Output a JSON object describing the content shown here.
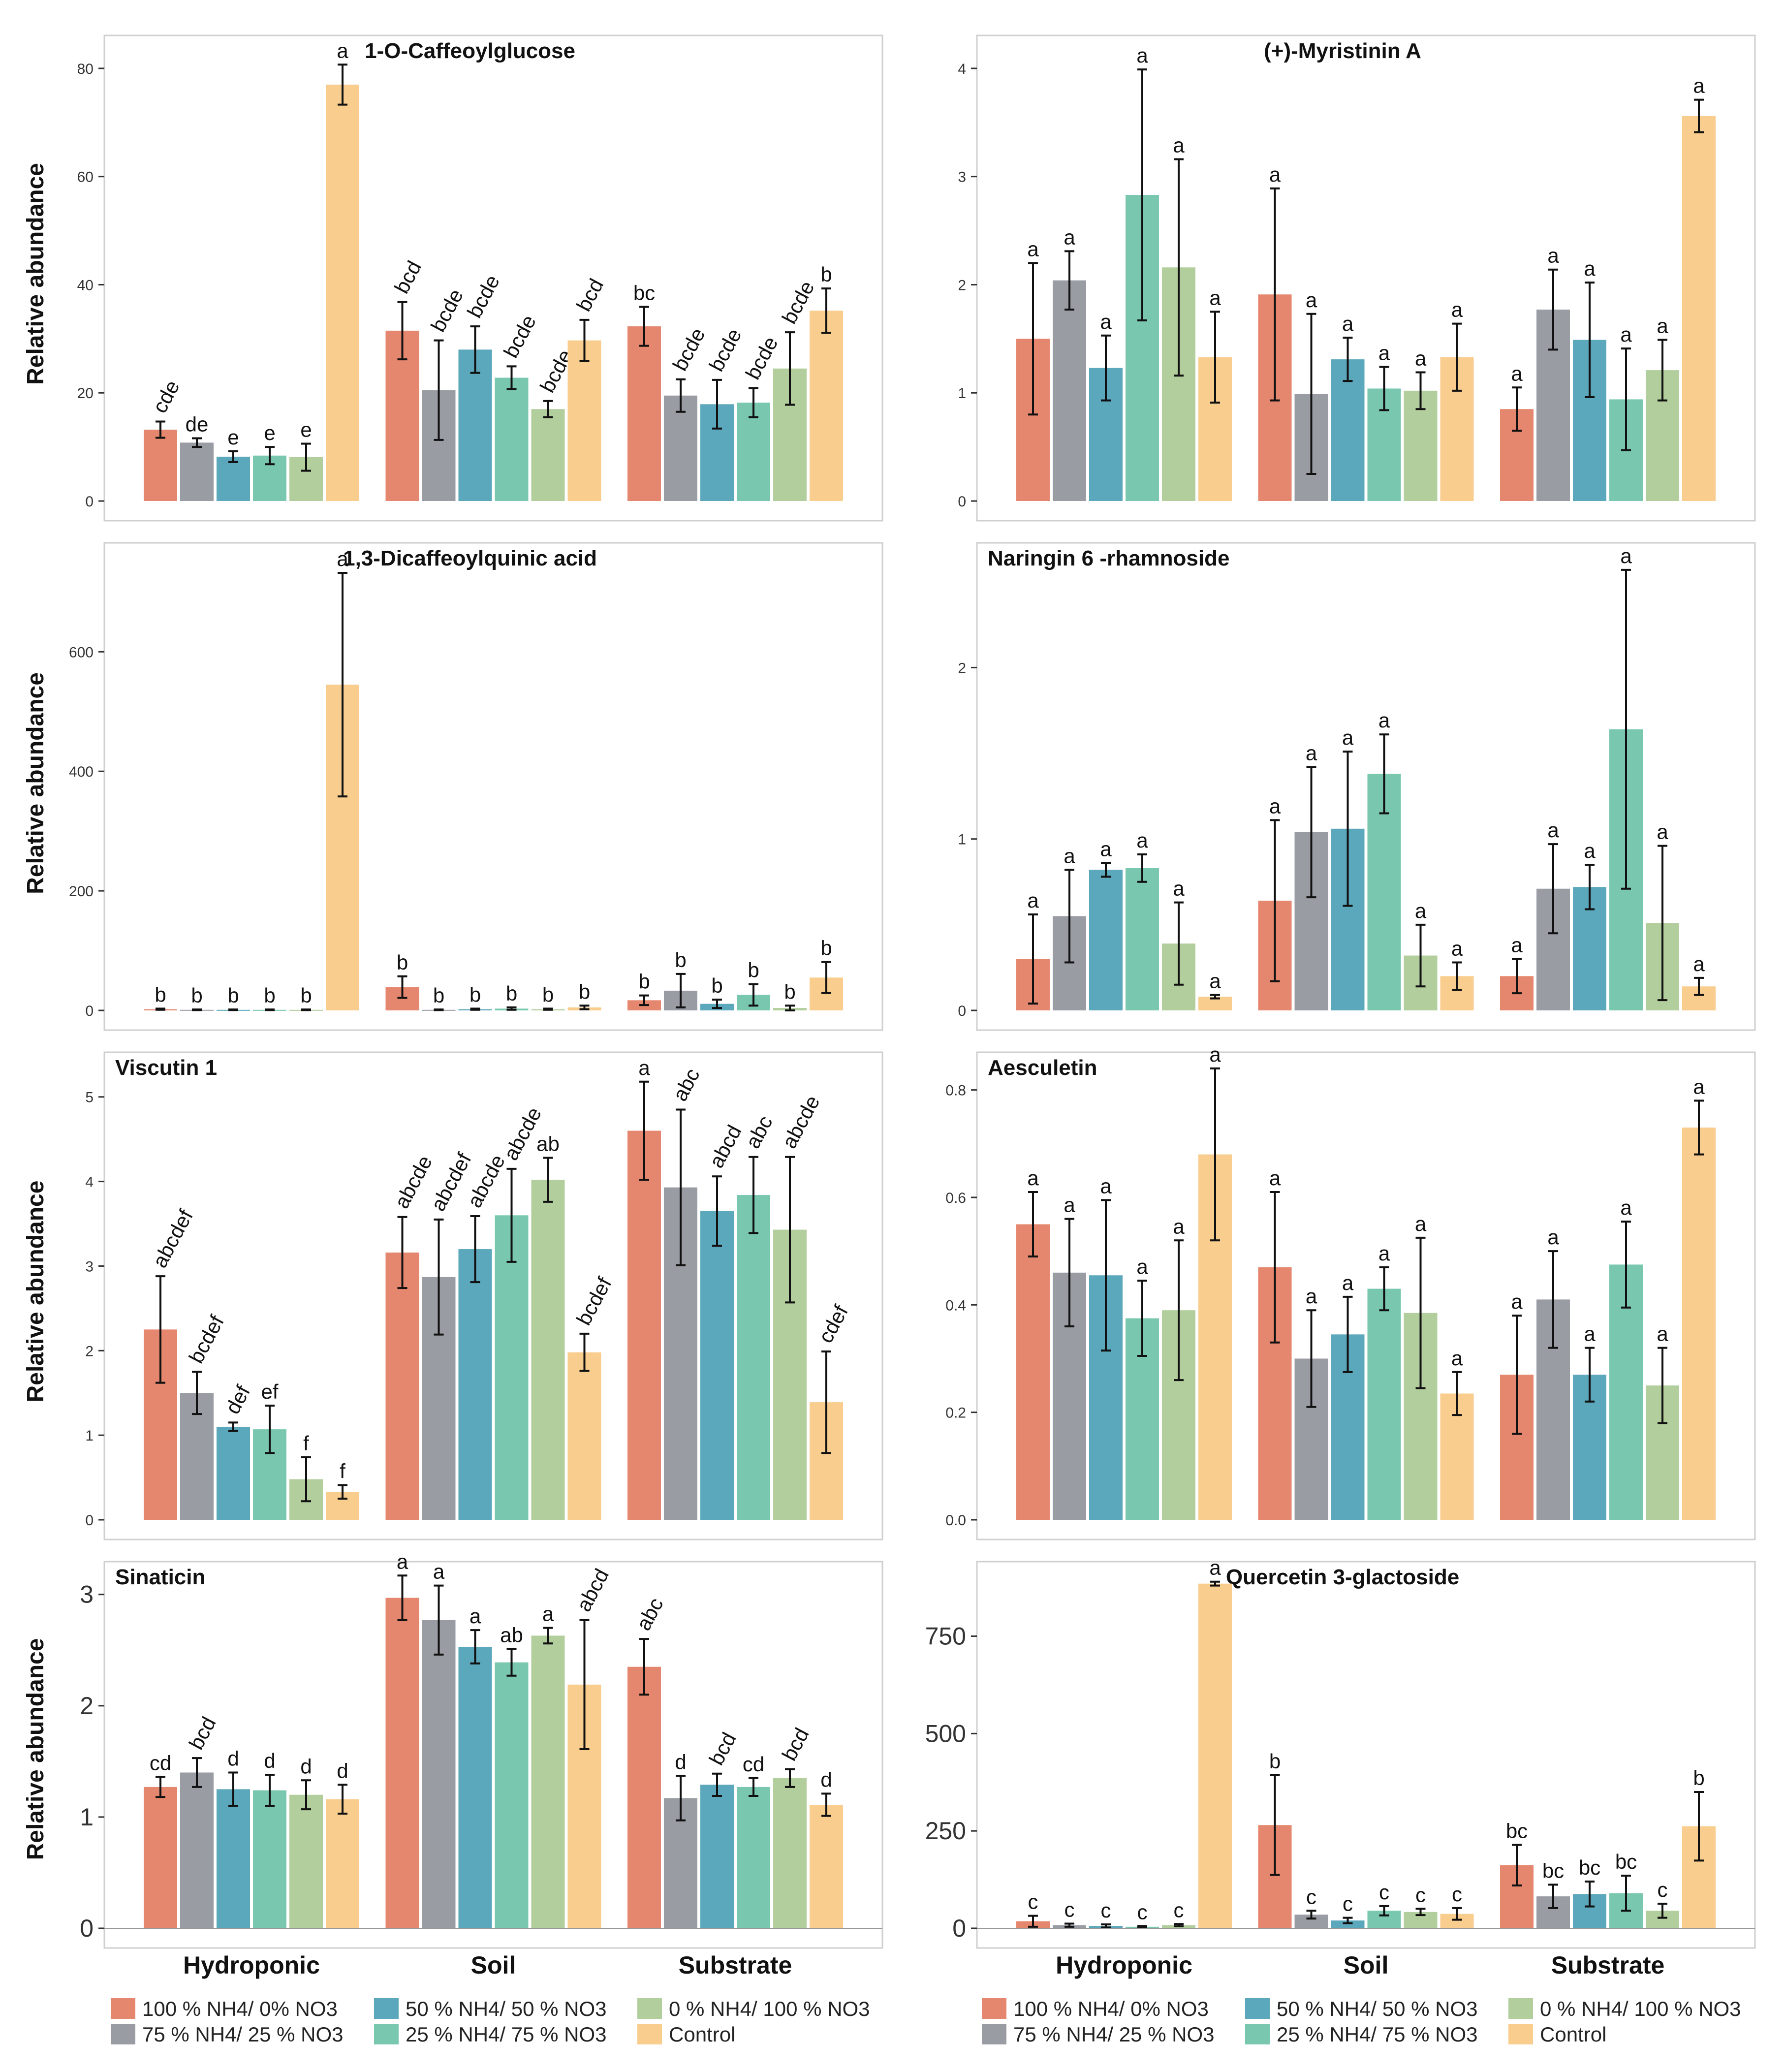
{
  "groups": [
    "Hydroponic",
    "Soil",
    "Substrate"
  ],
  "ylabel": "Relative abundance",
  "legend": [
    {
      "label": "100 % NH4/ 0% NO3",
      "color": "#E5876E"
    },
    {
      "label": "75 % NH4/ 25 % NO3",
      "color": "#9A9CA4"
    },
    {
      "label": "50 % NH4/ 50 % NO3",
      "color": "#5BA7BB"
    },
    {
      "label": "25 % NH4/ 75 % NO3",
      "color": "#78C7AE"
    },
    {
      "label": "0 % NH4/ 100 % NO3",
      "color": "#B2CE9D"
    },
    {
      "label": "Control",
      "color": "#F8CD8D"
    }
  ],
  "chart_data": [
    {
      "type": "bar",
      "title": "1-O-Caffeoylglucose",
      "title_align": "center",
      "xlabel": "",
      "ylabel": "Relative abundance",
      "ylim": [
        0,
        84
      ],
      "yticks": [
        0,
        20,
        40,
        60,
        80
      ],
      "categories": [
        "Hydroponic",
        "Soil",
        "Substrate"
      ],
      "series": [
        {
          "name": "100 % NH4/ 0% NO3",
          "values": [
            13.2,
            31.5,
            32.3
          ],
          "errors": [
            1.5,
            5.3,
            3.6
          ],
          "letters": [
            "cde",
            "bcd",
            "bc"
          ]
        },
        {
          "name": "75 % NH4/ 25 % NO3",
          "values": [
            10.8,
            20.5,
            19.5
          ],
          "errors": [
            0.8,
            9.2,
            3.0
          ],
          "letters": [
            "de",
            "bcde",
            "bcde"
          ]
        },
        {
          "name": "50 % NH4/ 50 % NO3",
          "values": [
            8.2,
            28.0,
            17.9
          ],
          "errors": [
            1.0,
            4.3,
            4.5
          ],
          "letters": [
            "e",
            "bcde",
            "bcde"
          ]
        },
        {
          "name": "25 % NH4/ 75 % NO3",
          "values": [
            8.4,
            22.8,
            18.2
          ],
          "errors": [
            1.6,
            2.1,
            2.7
          ],
          "letters": [
            "e",
            "bcde",
            "bcde"
          ]
        },
        {
          "name": "0 % NH4/ 100 % NO3",
          "values": [
            8.1,
            17.0,
            24.5
          ],
          "errors": [
            2.5,
            1.5,
            6.7
          ],
          "letters": [
            "e",
            "bcde",
            "bcde"
          ]
        },
        {
          "name": "Control",
          "values": [
            77.0,
            29.7,
            35.2
          ],
          "errors": [
            3.7,
            3.8,
            4.1
          ],
          "letters": [
            "a",
            "bcd",
            "b"
          ]
        }
      ]
    },
    {
      "type": "bar",
      "title": "(+)-Myristinin A",
      "title_align": "center",
      "xlabel": "",
      "ylabel": "",
      "ylim": [
        0,
        4.2
      ],
      "yticks": [
        0,
        1,
        2,
        3,
        4
      ],
      "categories": [
        "Hydroponic",
        "Soil",
        "Substrate"
      ],
      "series": [
        {
          "name": "100 % NH4/ 0% NO3",
          "values": [
            1.5,
            1.91,
            0.85
          ],
          "errors": [
            0.7,
            0.98,
            0.2
          ],
          "letters": [
            "a",
            "a",
            "a"
          ]
        },
        {
          "name": "75 % NH4/ 25 % NO3",
          "values": [
            2.04,
            0.99,
            1.77
          ],
          "errors": [
            0.27,
            0.74,
            0.37
          ],
          "letters": [
            "a",
            "a",
            "a"
          ]
        },
        {
          "name": "50 % NH4/ 50 % NO3",
          "values": [
            1.23,
            1.31,
            1.49
          ],
          "errors": [
            0.3,
            0.2,
            0.53
          ],
          "letters": [
            "a",
            "a",
            "a"
          ]
        },
        {
          "name": "25 % NH4/ 75 % NO3",
          "values": [
            2.83,
            1.04,
            0.94
          ],
          "errors": [
            1.16,
            0.2,
            0.47
          ],
          "letters": [
            "a",
            "a",
            "a"
          ]
        },
        {
          "name": "0 % NH4/ 100 % NO3",
          "values": [
            2.16,
            1.02,
            1.21
          ],
          "errors": [
            1.0,
            0.17,
            0.28
          ],
          "letters": [
            "a",
            "a",
            "a"
          ]
        },
        {
          "name": "Control",
          "values": [
            1.33,
            1.33,
            3.56
          ],
          "errors": [
            0.42,
            0.31,
            0.15
          ],
          "letters": [
            "a",
            "a",
            "a"
          ]
        }
      ]
    },
    {
      "type": "bar",
      "title": "1,3-Dicaffeoylquinic acid",
      "title_align": "center",
      "xlabel": "",
      "ylabel": "Relative abundance",
      "ylim": [
        0,
        760
      ],
      "yticks": [
        0,
        200,
        400,
        600
      ],
      "categories": [
        "Hydroponic",
        "Soil",
        "Substrate"
      ],
      "series": [
        {
          "name": "100 % NH4/ 0% NO3",
          "values": [
            2,
            39,
            17
          ],
          "errors": [
            1,
            18,
            8
          ],
          "letters": [
            "b",
            "b",
            "b"
          ]
        },
        {
          "name": "75 % NH4/ 25 % NO3",
          "values": [
            1,
            1,
            33
          ],
          "errors": [
            0.5,
            0.5,
            28
          ],
          "letters": [
            "b",
            "b",
            "b"
          ]
        },
        {
          "name": "50 % NH4/ 50 % NO3",
          "values": [
            1,
            2,
            11
          ],
          "errors": [
            0.5,
            1,
            7
          ],
          "letters": [
            "b",
            "b",
            "b"
          ]
        },
        {
          "name": "25 % NH4/ 75 % NO3",
          "values": [
            1,
            3,
            26
          ],
          "errors": [
            0.5,
            2,
            18
          ],
          "letters": [
            "b",
            "b",
            "b"
          ]
        },
        {
          "name": "0 % NH4/ 100 % NO3",
          "values": [
            1,
            2,
            4
          ],
          "errors": [
            0.5,
            1,
            4
          ],
          "letters": [
            "b",
            "b",
            "b"
          ]
        },
        {
          "name": "Control",
          "values": [
            545,
            5,
            55
          ],
          "errors": [
            187,
            3,
            26
          ],
          "letters": [
            "a",
            "b",
            "b"
          ]
        }
      ]
    },
    {
      "type": "bar",
      "title": "Naringin 6 -rhamnoside",
      "title_align": "left",
      "xlabel": "",
      "ylabel": "",
      "ylim": [
        0,
        2.65
      ],
      "yticks": [
        0,
        1,
        2
      ],
      "categories": [
        "Hydroponic",
        "Soil",
        "Substrate"
      ],
      "series": [
        {
          "name": "100 % NH4/ 0% NO3",
          "values": [
            0.3,
            0.64,
            0.2
          ],
          "errors": [
            0.26,
            0.47,
            0.1
          ],
          "letters": [
            "a",
            "a",
            "a"
          ]
        },
        {
          "name": "75 % NH4/ 25 % NO3",
          "values": [
            0.55,
            1.04,
            0.71
          ],
          "errors": [
            0.27,
            0.38,
            0.26
          ],
          "letters": [
            "a",
            "a",
            "a"
          ]
        },
        {
          "name": "50 % NH4/ 50 % NO3",
          "values": [
            0.82,
            1.06,
            0.72
          ],
          "errors": [
            0.04,
            0.45,
            0.13
          ],
          "letters": [
            "a",
            "a",
            "a"
          ]
        },
        {
          "name": "25 % NH4/ 75 % NO3",
          "values": [
            0.83,
            1.38,
            1.64
          ],
          "errors": [
            0.08,
            0.23,
            0.93
          ],
          "letters": [
            "a",
            "a",
            "a"
          ]
        },
        {
          "name": "0 % NH4/ 100 % NO3",
          "values": [
            0.39,
            0.32,
            0.51
          ],
          "errors": [
            0.24,
            0.18,
            0.45
          ],
          "letters": [
            "a",
            "a",
            "a"
          ]
        },
        {
          "name": "Control",
          "values": [
            0.08,
            0.2,
            0.14
          ],
          "errors": [
            0.01,
            0.08,
            0.05
          ],
          "letters": [
            "a",
            "a",
            "a"
          ]
        }
      ]
    },
    {
      "type": "bar",
      "title": "Viscutin 1",
      "title_align": "left",
      "xlabel": "",
      "ylabel": "Relative abundance",
      "ylim": [
        0,
        5.4
      ],
      "yticks": [
        0,
        1,
        2,
        3,
        4,
        5
      ],
      "categories": [
        "Hydroponic",
        "Soil",
        "Substrate"
      ],
      "series": [
        {
          "name": "100 % NH4/ 0% NO3",
          "values": [
            2.25,
            3.16,
            4.6
          ],
          "errors": [
            0.63,
            0.42,
            0.58
          ],
          "letters": [
            "abcdef",
            "abcde",
            "a"
          ]
        },
        {
          "name": "75 % NH4/ 25 % NO3",
          "values": [
            1.5,
            2.87,
            3.93
          ],
          "errors": [
            0.25,
            0.68,
            0.92
          ],
          "letters": [
            "bcdef",
            "abcdef",
            "abc"
          ]
        },
        {
          "name": "50 % NH4/ 50 % NO3",
          "values": [
            1.1,
            3.2,
            3.65
          ],
          "errors": [
            0.05,
            0.39,
            0.41
          ],
          "letters": [
            "def",
            "abcde",
            "abcd"
          ]
        },
        {
          "name": "25 % NH4/ 75 % NO3",
          "values": [
            1.07,
            3.6,
            3.84
          ],
          "errors": [
            0.28,
            0.55,
            0.45
          ],
          "letters": [
            "ef",
            "abcde",
            "abc"
          ]
        },
        {
          "name": "0 % NH4/ 100 % NO3",
          "values": [
            0.48,
            4.02,
            3.43
          ],
          "errors": [
            0.26,
            0.26,
            0.86
          ],
          "letters": [
            "f",
            "ab",
            "abcde"
          ]
        },
        {
          "name": "Control",
          "values": [
            0.33,
            1.98,
            1.39
          ],
          "errors": [
            0.08,
            0.22,
            0.6
          ],
          "letters": [
            "f",
            "bcdef",
            "cdef"
          ]
        }
      ]
    },
    {
      "type": "bar",
      "title": "Aesculetin",
      "title_align": "left",
      "xlabel": "",
      "ylabel": "",
      "ylim": [
        0,
        0.85
      ],
      "yticks": [
        0.0,
        0.2,
        0.4,
        0.6,
        0.8
      ],
      "categories": [
        "Hydroponic",
        "Soil",
        "Substrate"
      ],
      "series": [
        {
          "name": "100 % NH4/ 0% NO3",
          "values": [
            0.55,
            0.47,
            0.27
          ],
          "errors": [
            0.06,
            0.14,
            0.11
          ],
          "letters": [
            "a",
            "a",
            "a"
          ]
        },
        {
          "name": "75 % NH4/ 25 % NO3",
          "values": [
            0.46,
            0.3,
            0.41
          ],
          "errors": [
            0.1,
            0.09,
            0.09
          ],
          "letters": [
            "a",
            "a",
            "a"
          ]
        },
        {
          "name": "50 % NH4/ 50 % NO3",
          "values": [
            0.455,
            0.345,
            0.27
          ],
          "errors": [
            0.14,
            0.07,
            0.05
          ],
          "letters": [
            "a",
            "a",
            "a"
          ]
        },
        {
          "name": "25 % NH4/ 75 % NO3",
          "values": [
            0.375,
            0.43,
            0.475
          ],
          "errors": [
            0.07,
            0.04,
            0.08
          ],
          "letters": [
            "a",
            "a",
            "a"
          ]
        },
        {
          "name": "0 % NH4/ 100 % NO3",
          "values": [
            0.39,
            0.385,
            0.25
          ],
          "errors": [
            0.13,
            0.14,
            0.07
          ],
          "letters": [
            "a",
            "a",
            "a"
          ]
        },
        {
          "name": "Control",
          "values": [
            0.68,
            0.235,
            0.73
          ],
          "errors": [
            0.16,
            0.04,
            0.05
          ],
          "letters": [
            "a",
            "a",
            "a"
          ]
        }
      ]
    },
    {
      "type": "bar",
      "title": "Sinaticin",
      "title_align": "left",
      "xlabel": "",
      "ylabel": "Relative abundance",
      "ylim": [
        0,
        3.22
      ],
      "yticks": [
        0,
        1,
        2,
        3
      ],
      "categories": [
        "Hydroponic",
        "Soil",
        "Substrate"
      ],
      "series": [
        {
          "name": "100 % NH4/ 0% NO3",
          "values": [
            1.27,
            2.97,
            2.35
          ],
          "errors": [
            0.09,
            0.2,
            0.25
          ],
          "letters": [
            "cd",
            "a",
            "abc"
          ]
        },
        {
          "name": "75 % NH4/ 25 % NO3",
          "values": [
            1.4,
            2.77,
            1.17
          ],
          "errors": [
            0.13,
            0.31,
            0.2
          ],
          "letters": [
            "bcd",
            "a",
            "d"
          ]
        },
        {
          "name": "50 % NH4/ 50 % NO3",
          "values": [
            1.25,
            2.53,
            1.29
          ],
          "errors": [
            0.15,
            0.15,
            0.1
          ],
          "letters": [
            "d",
            "a",
            "bcd"
          ]
        },
        {
          "name": "25 % NH4/ 75 % NO3",
          "values": [
            1.24,
            2.39,
            1.27
          ],
          "errors": [
            0.14,
            0.12,
            0.08
          ],
          "letters": [
            "d",
            "ab",
            "cd"
          ]
        },
        {
          "name": "0 % NH4/ 100 % NO3",
          "values": [
            1.2,
            2.63,
            1.35
          ],
          "errors": [
            0.13,
            0.07,
            0.08
          ],
          "letters": [
            "d",
            "a",
            "bcd"
          ]
        },
        {
          "name": "Control",
          "values": [
            1.16,
            2.19,
            1.11
          ],
          "errors": [
            0.13,
            0.58,
            0.1
          ],
          "letters": [
            "d",
            "abcd",
            "d"
          ]
        }
      ]
    },
    {
      "type": "bar",
      "title": "Quercetin 3-glactoside",
      "title_align": "center",
      "xlabel": "",
      "ylabel": "",
      "ylim": [
        0,
        920
      ],
      "yticks": [
        0,
        250,
        500,
        750
      ],
      "categories": [
        "Hydroponic",
        "Soil",
        "Substrate"
      ],
      "series": [
        {
          "name": "100 % NH4/ 0% NO3",
          "values": [
            18,
            265,
            162
          ],
          "errors": [
            14,
            128,
            52
          ],
          "letters": [
            "c",
            "b",
            "bc"
          ]
        },
        {
          "name": "75 % NH4/ 25 % NO3",
          "values": [
            8,
            35,
            82
          ],
          "errors": [
            4,
            10,
            30
          ],
          "letters": [
            "c",
            "c",
            "bc"
          ]
        },
        {
          "name": "50 % NH4/ 50 % NO3",
          "values": [
            6,
            20,
            88
          ],
          "errors": [
            4,
            7,
            32
          ],
          "letters": [
            "c",
            "c",
            "bc"
          ]
        },
        {
          "name": "25 % NH4/ 75 % NO3",
          "values": [
            4,
            45,
            90
          ],
          "errors": [
            2,
            12,
            45
          ],
          "letters": [
            "c",
            "c",
            "bc"
          ]
        },
        {
          "name": "0 % NH4/ 100 % NO3",
          "values": [
            8,
            42,
            45
          ],
          "errors": [
            3,
            8,
            18
          ],
          "letters": [
            "c",
            "c",
            "c"
          ]
        },
        {
          "name": "Control",
          "values": [
            885,
            37,
            262
          ],
          "errors": [
            5,
            15,
            88
          ],
          "letters": [
            "a",
            "c",
            "b"
          ]
        }
      ]
    }
  ]
}
